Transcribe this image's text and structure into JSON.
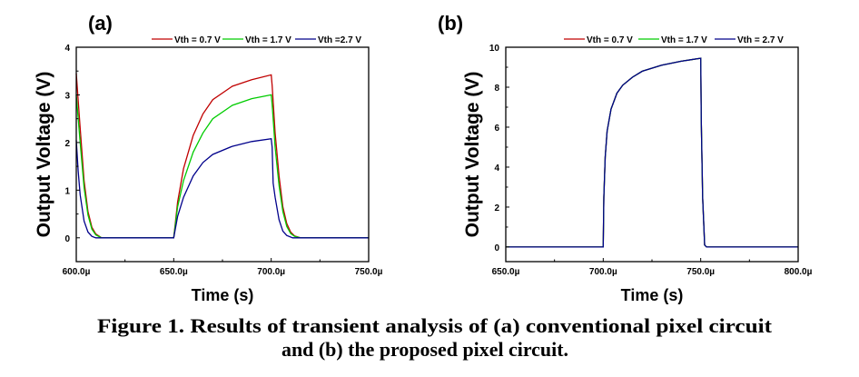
{
  "caption": {
    "line1": "Figure 1. Results of transient analysis of (a) conventional pixel circuit",
    "line2": "and (b) the proposed pixel circuit."
  },
  "chart_data": [
    {
      "type": "line",
      "panel_label": "(a)",
      "title": "",
      "xlabel": "Time (s)",
      "ylabel": "Output Voltage (V)",
      "xlim": [
        600,
        750
      ],
      "ylim": [
        -0.5,
        4
      ],
      "x_unit": "µs",
      "xticks": [
        600,
        650,
        700,
        750
      ],
      "xtick_labels": [
        "600.0µ",
        "650.0µ",
        "700.0µ",
        "750.0µ"
      ],
      "yticks": [
        0,
        1,
        2,
        3,
        4
      ],
      "ytick_labels": [
        "0",
        "1",
        "2",
        "3",
        "4"
      ],
      "grid": false,
      "legend_position": "top",
      "series": [
        {
          "name": "Vth = 0.7 V",
          "color": "#c00000",
          "points": [
            [
              600,
              3.45
            ],
            [
              602,
              2.3
            ],
            [
              604,
              1.2
            ],
            [
              606,
              0.55
            ],
            [
              608,
              0.22
            ],
            [
              610,
              0.08
            ],
            [
              613,
              0
            ],
            [
              650,
              0
            ],
            [
              652,
              0.75
            ],
            [
              655,
              1.45
            ],
            [
              660,
              2.15
            ],
            [
              665,
              2.6
            ],
            [
              670,
              2.9
            ],
            [
              680,
              3.18
            ],
            [
              690,
              3.32
            ],
            [
              700,
              3.42
            ],
            [
              700.5,
              3.2
            ],
            [
              702,
              2.2
            ],
            [
              704,
              1.3
            ],
            [
              706,
              0.65
            ],
            [
              708,
              0.3
            ],
            [
              710,
              0.12
            ],
            [
              712,
              0.04
            ],
            [
              715,
              0
            ],
            [
              750,
              0
            ]
          ]
        },
        {
          "name": "Vth = 1.7 V",
          "color": "#00cc00",
          "points": [
            [
              600,
              3.0
            ],
            [
              602,
              2.0
            ],
            [
              604,
              1.05
            ],
            [
              606,
              0.48
            ],
            [
              608,
              0.18
            ],
            [
              610,
              0.06
            ],
            [
              613,
              0
            ],
            [
              650,
              0
            ],
            [
              652,
              0.65
            ],
            [
              655,
              1.2
            ],
            [
              660,
              1.8
            ],
            [
              665,
              2.2
            ],
            [
              670,
              2.5
            ],
            [
              680,
              2.78
            ],
            [
              690,
              2.92
            ],
            [
              700,
              3.0
            ],
            [
              700.5,
              2.8
            ],
            [
              702,
              1.9
            ],
            [
              704,
              1.1
            ],
            [
              706,
              0.55
            ],
            [
              708,
              0.24
            ],
            [
              710,
              0.09
            ],
            [
              712,
              0.03
            ],
            [
              715,
              0
            ],
            [
              750,
              0
            ]
          ]
        },
        {
          "name": "Vth =2.7 V",
          "color": "#00008b",
          "points": [
            [
              600,
              2.05
            ],
            [
              601,
              1.4
            ],
            [
              602,
              0.9
            ],
            [
              604,
              0.35
            ],
            [
              606,
              0.12
            ],
            [
              608,
              0.03
            ],
            [
              610,
              0
            ],
            [
              650,
              0
            ],
            [
              652,
              0.45
            ],
            [
              655,
              0.85
            ],
            [
              660,
              1.3
            ],
            [
              665,
              1.58
            ],
            [
              670,
              1.75
            ],
            [
              680,
              1.92
            ],
            [
              690,
              2.02
            ],
            [
              700,
              2.08
            ],
            [
              700.5,
              1.9
            ],
            [
              701,
              1.15
            ],
            [
              702,
              0.85
            ],
            [
              704,
              0.38
            ],
            [
              706,
              0.14
            ],
            [
              708,
              0.05
            ],
            [
              711,
              0
            ],
            [
              750,
              0
            ]
          ]
        }
      ]
    },
    {
      "type": "line",
      "panel_label": "(b)",
      "title": "",
      "xlabel": "Time (s)",
      "ylabel": "Output Voltage (V)",
      "xlim": [
        650,
        800
      ],
      "ylim": [
        -0.73,
        10
      ],
      "x_unit": "µs",
      "xticks": [
        650,
        700,
        750,
        800
      ],
      "xtick_labels": [
        "650.0µ",
        "700.0µ",
        "750.0µ",
        "800.0µ"
      ],
      "yticks": [
        0,
        2,
        4,
        6,
        8,
        10
      ],
      "ytick_labels": [
        "0",
        "2",
        "4",
        "6",
        "8",
        "10"
      ],
      "grid": false,
      "legend_position": "top",
      "series": [
        {
          "name": "Vth = 0.7 V",
          "color": "#c00000",
          "points": [
            [
              650,
              0
            ],
            [
              700,
              0
            ],
            [
              700.3,
              2.5
            ],
            [
              701,
              4.5
            ],
            [
              702,
              5.8
            ],
            [
              704,
              6.9
            ],
            [
              707,
              7.7
            ],
            [
              710,
              8.1
            ],
            [
              715,
              8.5
            ],
            [
              720,
              8.8
            ],
            [
              730,
              9.1
            ],
            [
              740,
              9.3
            ],
            [
              750,
              9.45
            ],
            [
              750.3,
              6.3
            ],
            [
              751,
              2.5
            ],
            [
              752,
              0.1
            ],
            [
              753,
              0
            ],
            [
              800,
              0
            ]
          ]
        },
        {
          "name": "Vth = 1.7 V",
          "color": "#00cc00",
          "points": [
            [
              650,
              0
            ],
            [
              700,
              0
            ],
            [
              700.3,
              2.5
            ],
            [
              701,
              4.5
            ],
            [
              702,
              5.8
            ],
            [
              704,
              6.9
            ],
            [
              707,
              7.7
            ],
            [
              710,
              8.1
            ],
            [
              715,
              8.5
            ],
            [
              720,
              8.8
            ],
            [
              730,
              9.1
            ],
            [
              740,
              9.3
            ],
            [
              750,
              9.45
            ],
            [
              750.3,
              6.3
            ],
            [
              751,
              2.5
            ],
            [
              752,
              0.1
            ],
            [
              753,
              0
            ],
            [
              800,
              0
            ]
          ]
        },
        {
          "name": "Vth = 2.7 V",
          "color": "#00008b",
          "points": [
            [
              650,
              0
            ],
            [
              700,
              0
            ],
            [
              700.3,
              2.5
            ],
            [
              701,
              4.5
            ],
            [
              702,
              5.8
            ],
            [
              704,
              6.9
            ],
            [
              707,
              7.7
            ],
            [
              710,
              8.1
            ],
            [
              715,
              8.5
            ],
            [
              720,
              8.8
            ],
            [
              730,
              9.1
            ],
            [
              740,
              9.3
            ],
            [
              750,
              9.45
            ],
            [
              750.3,
              6.3
            ],
            [
              751,
              2.5
            ],
            [
              752,
              0.1
            ],
            [
              753,
              0
            ],
            [
              800,
              0
            ]
          ]
        }
      ]
    }
  ]
}
